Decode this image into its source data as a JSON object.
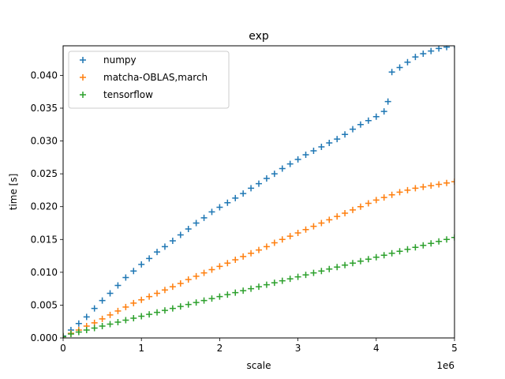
{
  "chart_data": {
    "type": "scatter",
    "title": "exp",
    "xlabel": "scale",
    "ylabel": "time [s]",
    "x_offset_label": "1e6",
    "xlim": [
      0,
      5000000
    ],
    "ylim": [
      0,
      0.0445
    ],
    "x_tick_values": [
      0,
      1000000,
      2000000,
      3000000,
      4000000,
      5000000
    ],
    "x_tick_labels": [
      "0",
      "1",
      "2",
      "3",
      "4",
      "5"
    ],
    "y_tick_values": [
      0,
      0.005,
      0.01,
      0.015,
      0.02,
      0.025,
      0.03,
      0.035,
      0.04
    ],
    "y_tick_labels": [
      "0.000",
      "0.005",
      "0.010",
      "0.015",
      "0.020",
      "0.025",
      "0.030",
      "0.035",
      "0.040"
    ],
    "grid": false,
    "legend_position": "top-left",
    "marker": "+",
    "series": [
      {
        "name": "numpy",
        "color": "#1f77b4",
        "points": [
          [
            0,
            0.0003
          ],
          [
            100000,
            0.0012
          ],
          [
            200000,
            0.0022
          ],
          [
            300000,
            0.0032
          ],
          [
            400000,
            0.0045
          ],
          [
            500000,
            0.0057
          ],
          [
            600000,
            0.0068
          ],
          [
            700000,
            0.008
          ],
          [
            800000,
            0.0092
          ],
          [
            900000,
            0.0102
          ],
          [
            1000000,
            0.0112
          ],
          [
            1100000,
            0.0121
          ],
          [
            1200000,
            0.0131
          ],
          [
            1300000,
            0.0139
          ],
          [
            1400000,
            0.0148
          ],
          [
            1500000,
            0.0157
          ],
          [
            1600000,
            0.0166
          ],
          [
            1700000,
            0.0175
          ],
          [
            1800000,
            0.0183
          ],
          [
            1900000,
            0.0192
          ],
          [
            2000000,
            0.0199
          ],
          [
            2100000,
            0.0206
          ],
          [
            2200000,
            0.0213
          ],
          [
            2300000,
            0.022
          ],
          [
            2400000,
            0.0228
          ],
          [
            2500000,
            0.0235
          ],
          [
            2600000,
            0.0243
          ],
          [
            2700000,
            0.025
          ],
          [
            2800000,
            0.0258
          ],
          [
            2900000,
            0.0265
          ],
          [
            3000000,
            0.0272
          ],
          [
            3100000,
            0.0279
          ],
          [
            3200000,
            0.0285
          ],
          [
            3300000,
            0.0291
          ],
          [
            3400000,
            0.0297
          ],
          [
            3500000,
            0.0303
          ],
          [
            3600000,
            0.031
          ],
          [
            3700000,
            0.0318
          ],
          [
            3800000,
            0.0325
          ],
          [
            3900000,
            0.0331
          ],
          [
            4000000,
            0.0337
          ],
          [
            4100000,
            0.0345
          ],
          [
            4150000,
            0.036
          ],
          [
            4200000,
            0.0405
          ],
          [
            4300000,
            0.0412
          ],
          [
            4400000,
            0.042
          ],
          [
            4500000,
            0.0428
          ],
          [
            4600000,
            0.0433
          ],
          [
            4700000,
            0.0437
          ],
          [
            4800000,
            0.0441
          ],
          [
            4900000,
            0.0443
          ],
          [
            5000000,
            0.0446
          ]
        ]
      },
      {
        "name": "matcha-OBLAS,march",
        "color": "#ff7f0e",
        "points": [
          [
            0,
            0.0002
          ],
          [
            100000,
            0.0007
          ],
          [
            200000,
            0.0012
          ],
          [
            300000,
            0.0018
          ],
          [
            400000,
            0.0023
          ],
          [
            500000,
            0.0029
          ],
          [
            600000,
            0.0035
          ],
          [
            700000,
            0.0041
          ],
          [
            800000,
            0.0047
          ],
          [
            900000,
            0.0053
          ],
          [
            1000000,
            0.0058
          ],
          [
            1100000,
            0.0063
          ],
          [
            1200000,
            0.0068
          ],
          [
            1300000,
            0.0073
          ],
          [
            1400000,
            0.0078
          ],
          [
            1500000,
            0.0083
          ],
          [
            1600000,
            0.0089
          ],
          [
            1700000,
            0.0094
          ],
          [
            1800000,
            0.0099
          ],
          [
            1900000,
            0.0104
          ],
          [
            2000000,
            0.0109
          ],
          [
            2100000,
            0.0114
          ],
          [
            2200000,
            0.0119
          ],
          [
            2300000,
            0.0124
          ],
          [
            2400000,
            0.0129
          ],
          [
            2500000,
            0.0134
          ],
          [
            2600000,
            0.0139
          ],
          [
            2700000,
            0.0145
          ],
          [
            2800000,
            0.015
          ],
          [
            2900000,
            0.0155
          ],
          [
            3000000,
            0.016
          ],
          [
            3100000,
            0.0165
          ],
          [
            3200000,
            0.017
          ],
          [
            3300000,
            0.0175
          ],
          [
            3400000,
            0.018
          ],
          [
            3500000,
            0.0185
          ],
          [
            3600000,
            0.019
          ],
          [
            3700000,
            0.0195
          ],
          [
            3800000,
            0.02
          ],
          [
            3900000,
            0.0205
          ],
          [
            4000000,
            0.021
          ],
          [
            4100000,
            0.0214
          ],
          [
            4200000,
            0.0218
          ],
          [
            4300000,
            0.0222
          ],
          [
            4400000,
            0.0225
          ],
          [
            4500000,
            0.0228
          ],
          [
            4600000,
            0.023
          ],
          [
            4700000,
            0.0232
          ],
          [
            4800000,
            0.0234
          ],
          [
            4900000,
            0.0236
          ],
          [
            5000000,
            0.0238
          ]
        ]
      },
      {
        "name": "tensorflow",
        "color": "#2ca02c",
        "points": [
          [
            0,
            0.0002
          ],
          [
            100000,
            0.0006
          ],
          [
            200000,
            0.0009
          ],
          [
            300000,
            0.0012
          ],
          [
            400000,
            0.0015
          ],
          [
            500000,
            0.0018
          ],
          [
            600000,
            0.0021
          ],
          [
            700000,
            0.0024
          ],
          [
            800000,
            0.0027
          ],
          [
            900000,
            0.003
          ],
          [
            1000000,
            0.0033
          ],
          [
            1100000,
            0.0036
          ],
          [
            1200000,
            0.0039
          ],
          [
            1300000,
            0.0042
          ],
          [
            1400000,
            0.0045
          ],
          [
            1500000,
            0.0048
          ],
          [
            1600000,
            0.0051
          ],
          [
            1700000,
            0.0054
          ],
          [
            1800000,
            0.0057
          ],
          [
            1900000,
            0.006
          ],
          [
            2000000,
            0.0063
          ],
          [
            2100000,
            0.0066
          ],
          [
            2200000,
            0.0069
          ],
          [
            2300000,
            0.0072
          ],
          [
            2400000,
            0.0075
          ],
          [
            2500000,
            0.0078
          ],
          [
            2600000,
            0.0081
          ],
          [
            2700000,
            0.0084
          ],
          [
            2800000,
            0.0087
          ],
          [
            2900000,
            0.009
          ],
          [
            3000000,
            0.0093
          ],
          [
            3100000,
            0.0096
          ],
          [
            3200000,
            0.0099
          ],
          [
            3300000,
            0.0102
          ],
          [
            3400000,
            0.0105
          ],
          [
            3500000,
            0.0108
          ],
          [
            3600000,
            0.0111
          ],
          [
            3700000,
            0.0114
          ],
          [
            3800000,
            0.0117
          ],
          [
            3900000,
            0.012
          ],
          [
            4000000,
            0.0123
          ],
          [
            4100000,
            0.0126
          ],
          [
            4200000,
            0.0129
          ],
          [
            4300000,
            0.0132
          ],
          [
            4400000,
            0.0135
          ],
          [
            4500000,
            0.0138
          ],
          [
            4600000,
            0.0141
          ],
          [
            4700000,
            0.0144
          ],
          [
            4800000,
            0.0147
          ],
          [
            4900000,
            0.015
          ],
          [
            5000000,
            0.0153
          ]
        ]
      }
    ]
  }
}
